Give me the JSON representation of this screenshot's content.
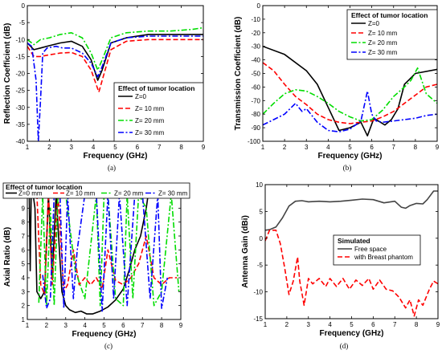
{
  "chart_data": [
    {
      "panel": "(a)",
      "type": "line",
      "xlabel": "Frequency (GHz)",
      "ylabel": "Reflection Coefficient (dB)",
      "xlim": [
        1,
        9
      ],
      "ylim": [
        -40,
        0
      ],
      "xticks": [
        1,
        2,
        3,
        4,
        5,
        6,
        7,
        8,
        9
      ],
      "yticks": [
        0,
        -5,
        -10,
        -15,
        -20,
        -25,
        -30,
        -35,
        -40
      ],
      "grid": false,
      "legend": {
        "title": "Effect of tumor location",
        "position": "bottom-right"
      },
      "series": [
        {
          "name": "Z=0",
          "color": "#000000",
          "dash": "solid",
          "x": [
            1.0,
            1.3,
            1.6,
            2.0,
            2.5,
            3.0,
            3.5,
            3.9,
            4.2,
            4.4,
            4.8,
            5.5,
            6.5,
            7.5,
            8.5,
            9.0
          ],
          "y": [
            -11,
            -13,
            -12.5,
            -11.8,
            -11,
            -10.5,
            -12,
            -16,
            -22,
            -19,
            -11,
            -9.5,
            -8.5,
            -8.5,
            -8.5,
            -8.5
          ]
        },
        {
          "name": "Z= 10 mm",
          "color": "#ff0000",
          "dash": "dash",
          "x": [
            1.0,
            1.3,
            1.6,
            2.0,
            2.5,
            3.0,
            3.5,
            3.9,
            4.25,
            4.45,
            4.8,
            5.5,
            6.5,
            7.5,
            8.5,
            9.0
          ],
          "y": [
            -12,
            -15,
            -15,
            -14.5,
            -14,
            -13.8,
            -15,
            -19,
            -25.5,
            -21,
            -13,
            -10.5,
            -10,
            -10,
            -10,
            -10
          ]
        },
        {
          "name": "Z= 20 mm",
          "color": "#00dd00",
          "dash": "dashdot",
          "x": [
            1.0,
            1.3,
            1.6,
            2.0,
            2.5,
            3.0,
            3.5,
            3.9,
            4.2,
            4.4,
            4.8,
            5.5,
            6.5,
            7.5,
            8.5,
            9.0
          ],
          "y": [
            -10,
            -11.5,
            -10,
            -9.5,
            -8.5,
            -8,
            -9.5,
            -14,
            -19,
            -16,
            -9.5,
            -8,
            -7.5,
            -7.5,
            -7,
            -6.5
          ]
        },
        {
          "name": "Z= 30 mm",
          "color": "#0000ff",
          "dash": "dashdot",
          "x": [
            1.0,
            1.2,
            1.4,
            1.5,
            1.6,
            1.7,
            1.9,
            2.3,
            2.6,
            3.0,
            3.5,
            3.9,
            4.2,
            4.4,
            4.8,
            5.5,
            6.5,
            7.5,
            8.5,
            9.0
          ],
          "y": [
            -11,
            -12,
            -22,
            -40,
            -28,
            -14,
            -12.5,
            -12,
            -12.5,
            -12.5,
            -14,
            -17,
            -21,
            -18,
            -11,
            -9.5,
            -9,
            -9,
            -9,
            -9
          ]
        }
      ]
    },
    {
      "panel": "(b)",
      "type": "line",
      "xlabel": "Frequency (GHz)",
      "ylabel": "Transmission Coefficient (dB)",
      "xlim": [
        1,
        9
      ],
      "ylim": [
        -100,
        0
      ],
      "xticks": [
        1,
        2,
        3,
        4,
        5,
        6,
        7,
        8,
        9
      ],
      "yticks": [
        0,
        -10,
        -20,
        -30,
        -40,
        -50,
        -60,
        -70,
        -80,
        -90,
        -100
      ],
      "grid": false,
      "legend": {
        "title": "Effect of tumor location",
        "position": "top-right"
      },
      "series": [
        {
          "name": "Z=0",
          "color": "#000000",
          "dash": "solid",
          "x": [
            1.0,
            2.0,
            3.0,
            3.5,
            4.0,
            4.5,
            5.0,
            5.5,
            5.8,
            6.1,
            6.3,
            6.6,
            6.9,
            7.2,
            7.5,
            8.0,
            9.0
          ],
          "y": [
            -30,
            -36,
            -48,
            -58,
            -75,
            -92,
            -90,
            -86,
            -96,
            -83,
            -85,
            -88,
            -84,
            -76,
            -58,
            -50,
            -47
          ]
        },
        {
          "name": "Z= 10 mm",
          "color": "#ff0000",
          "dash": "dash",
          "x": [
            1.0,
            1.5,
            2.0,
            2.5,
            3.0,
            3.5,
            4.0,
            4.5,
            5.0,
            5.5,
            6.0,
            6.5,
            7.0,
            7.5,
            8.0,
            8.5,
            9.0
          ],
          "y": [
            -42,
            -48,
            -58,
            -67,
            -73,
            -80,
            -84,
            -86,
            -87,
            -86,
            -85,
            -82,
            -78,
            -72,
            -66,
            -60,
            -58
          ]
        },
        {
          "name": "Z= 20 mm",
          "color": "#00dd00",
          "dash": "dashdot",
          "x": [
            1.0,
            1.5,
            2.0,
            2.5,
            3.0,
            3.5,
            4.0,
            4.5,
            5.0,
            5.5,
            6.0,
            6.5,
            7.0,
            7.5,
            7.8,
            8.1,
            8.5,
            9.0
          ],
          "y": [
            -80,
            -72,
            -65,
            -62,
            -63,
            -67,
            -72,
            -78,
            -82,
            -85,
            -84,
            -77,
            -67,
            -60,
            -55,
            -46,
            -65,
            -72
          ]
        },
        {
          "name": "Z= 30 mm",
          "color": "#0000ff",
          "dash": "dashdot",
          "x": [
            1.0,
            1.5,
            2.0,
            2.5,
            2.8,
            3.0,
            3.5,
            4.0,
            4.5,
            5.0,
            5.5,
            5.8,
            6.0,
            6.2,
            6.5,
            7.0,
            7.5,
            8.0,
            8.5,
            9.0
          ],
          "y": [
            -88,
            -84,
            -80,
            -72,
            -78,
            -76,
            -86,
            -92,
            -93,
            -91,
            -85,
            -63,
            -80,
            -85,
            -86,
            -85,
            -84,
            -83,
            -81,
            -80
          ]
        }
      ]
    },
    {
      "panel": "(c)",
      "type": "line",
      "xlabel": "Frequency (GHz)",
      "ylabel": "Axial Ratio (dB)",
      "xlim": [
        1,
        9
      ],
      "ylim": [
        1,
        10
      ],
      "xticks": [
        1,
        2,
        3,
        4,
        5,
        6,
        7,
        8,
        9
      ],
      "yticks": [
        1,
        2,
        3,
        4,
        5,
        6,
        7,
        8,
        9,
        10
      ],
      "grid": false,
      "legend": {
        "title": "Effect of tumor location",
        "position": "top"
      },
      "series": [
        {
          "name": "Z=0 mm",
          "color": "#000000",
          "dash": "solid",
          "x": [
            1.1,
            1.15,
            1.2,
            1.3,
            1.4,
            1.5,
            1.7,
            1.9,
            2.1,
            2.3,
            2.5,
            2.8,
            3.0,
            3.2,
            3.5,
            3.8,
            4.1,
            4.4,
            4.8,
            5.2,
            5.6,
            6.0,
            6.3,
            6.6,
            6.9,
            7.2,
            7.3,
            7.4
          ],
          "y": [
            10,
            4.5,
            10,
            10,
            9,
            3,
            2.5,
            3,
            10,
            4,
            10,
            3,
            2,
            1.7,
            1.5,
            1.6,
            1.4,
            1.4,
            1.6,
            1.9,
            2.4,
            3.2,
            4.5,
            6,
            7,
            9,
            10,
            10
          ]
        },
        {
          "name": "Z= 10 mm",
          "color": "#ff0000",
          "dash": "dash",
          "x": [
            1.5,
            1.7,
            1.9,
            2.1,
            2.3,
            2.6,
            2.9,
            3.1,
            3.4,
            3.7,
            4.0,
            4.3,
            4.6,
            4.9,
            5.2,
            5.6,
            6.0,
            6.4,
            6.8,
            7.2,
            7.6,
            8.0,
            8.4,
            8.8
          ],
          "y": [
            10,
            3.5,
            2.8,
            10,
            3.5,
            10,
            3,
            3.5,
            6,
            3.5,
            4,
            3.5,
            4,
            3.2,
            6,
            3.8,
            3.5,
            4,
            5,
            7,
            4,
            3.5,
            4,
            4
          ]
        },
        {
          "name": "Z= 20 mm",
          "color": "#00dd00",
          "dash": "dashdot",
          "x": [
            1.6,
            1.8,
            2.0,
            2.2,
            2.4,
            2.6,
            3.0,
            3.5,
            4.0,
            4.6,
            4.8,
            5.0,
            5.2,
            5.6,
            6.0,
            6.2,
            6.5,
            6.8,
            7.2,
            7.6,
            8.0,
            8.5,
            8.9
          ],
          "y": [
            2.2,
            10,
            2,
            9,
            2,
            10,
            10,
            4.5,
            2.5,
            10,
            2,
            10,
            10,
            2.5,
            2,
            10,
            2.5,
            10,
            9,
            2,
            3,
            10,
            3
          ]
        },
        {
          "name": "Z= 30 mm",
          "color": "#0000ff",
          "dash": "dashdot",
          "x": [
            1.8,
            2.0,
            2.2,
            2.4,
            2.7,
            2.9,
            3.1,
            3.4,
            3.6,
            4.0,
            4.6,
            4.9,
            5.2,
            5.5,
            5.8,
            6.2,
            6.6,
            7.0,
            7.4,
            7.8,
            8.0,
            8.3
          ],
          "y": [
            4.2,
            1.8,
            2.5,
            10,
            10,
            1.8,
            10,
            2.5,
            6,
            10,
            10,
            1.6,
            10,
            2.5,
            10,
            2,
            10,
            10,
            2.5,
            10,
            1.8,
            4
          ]
        }
      ]
    },
    {
      "panel": "(d)",
      "type": "line",
      "xlabel": "Frequency (GHz)",
      "ylabel": "Antenna Gain (dBi)",
      "xlim": [
        1,
        9
      ],
      "ylim": [
        -15,
        10
      ],
      "xticks": [
        1,
        2,
        3,
        4,
        5,
        6,
        7,
        8,
        9
      ],
      "yticks": [
        10,
        5,
        0,
        -5,
        -10,
        -15
      ],
      "grid": false,
      "legend": {
        "title": "Simulated",
        "position": "middle"
      },
      "series": [
        {
          "name": "Free space",
          "color": "#444444",
          "dash": "solid",
          "x": [
            1.0,
            1.2,
            1.5,
            1.8,
            2.1,
            2.4,
            2.7,
            3.0,
            3.5,
            4.0,
            4.5,
            5.0,
            5.5,
            6.0,
            6.5,
            7.0,
            7.3,
            7.5,
            7.7,
            8.0,
            8.3,
            8.5,
            8.8,
            9.0
          ],
          "y": [
            1.5,
            1.6,
            2.1,
            3.8,
            6.0,
            6.9,
            7.0,
            6.8,
            6.9,
            6.8,
            6.9,
            7.1,
            7.3,
            7.2,
            6.6,
            6.9,
            5.8,
            5.6,
            6.1,
            6.5,
            6.4,
            7.2,
            8.8,
            8.8
          ]
        },
        {
          "name": "with Breast phantom",
          "color": "#ff0000",
          "dash": "dash",
          "x": [
            1.0,
            1.2,
            1.5,
            1.7,
            1.9,
            2.1,
            2.3,
            2.5,
            2.6,
            2.8,
            3.0,
            3.2,
            3.5,
            3.8,
            4.0,
            4.3,
            4.6,
            4.9,
            5.2,
            5.5,
            5.8,
            6.0,
            6.3,
            6.6,
            6.9,
            7.2,
            7.5,
            7.7,
            7.9,
            8.1,
            8.3,
            8.6,
            8.8,
            9.0
          ],
          "y": [
            -0.5,
            1.5,
            1.5,
            -1.0,
            -5.5,
            -10.5,
            -8.0,
            -3.5,
            -8.0,
            -12.5,
            -7.5,
            -8.5,
            -7.5,
            -9.0,
            -7.5,
            -9.0,
            -7.5,
            -9.5,
            -7.8,
            -8.8,
            -7.5,
            -9.5,
            -7.8,
            -9.5,
            -9.8,
            -11.0,
            -13.0,
            -11.5,
            -14.5,
            -11.5,
            -12.5,
            -9.5,
            -8.0,
            -8.5
          ]
        }
      ]
    }
  ]
}
